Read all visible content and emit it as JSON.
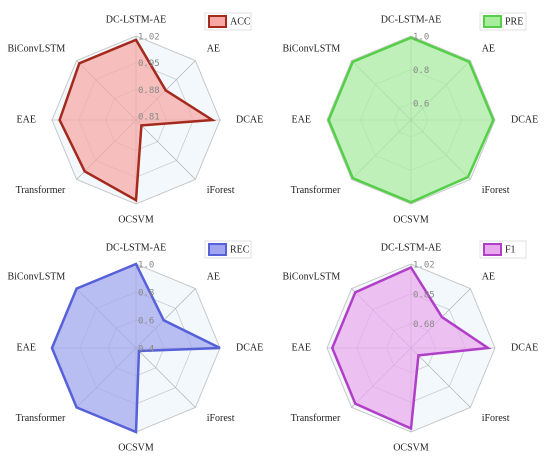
{
  "chart_data": [
    {
      "type": "radar",
      "categories": [
        "DC-LSTM-AE",
        "AE",
        "DCAE",
        "iForest",
        "OCSVM",
        "Transformer",
        "EAE",
        "BiConvLSTM"
      ],
      "series": [
        {
          "name": "ACC",
          "color": "#a52a1e",
          "fill": "#f7a7a4",
          "values": [
            1.01,
            0.91,
            1.0,
            0.82,
            1.01,
            0.99,
            1.0,
            1.01
          ]
        }
      ],
      "rlim": [
        0.8,
        1.02
      ],
      "rticks": [
        0.81,
        0.88,
        0.95,
        1.02
      ]
    },
    {
      "type": "radar",
      "categories": [
        "DC-LSTM-AE",
        "AE",
        "DCAE",
        "iForest",
        "OCSVM",
        "Transformer",
        "EAE",
        "BiConvLSTM"
      ],
      "series": [
        {
          "name": "PRE",
          "color": "#55cf48",
          "fill": "#a8ec9e",
          "values": [
            0.99,
            0.99,
            0.99,
            0.98,
            0.99,
            0.99,
            0.99,
            0.99
          ]
        }
      ],
      "rlim": [
        0.5,
        1.0
      ],
      "rticks": [
        0.6,
        0.8,
        {
          "value": 1.0,
          "label": "1.0"
        }
      ]
    },
    {
      "type": "radar",
      "categories": [
        "DC-LSTM-AE",
        "AE",
        "DCAE",
        "iForest",
        "OCSVM",
        "Transformer",
        "EAE",
        "BiConvLSTM"
      ],
      "series": [
        {
          "name": "REC",
          "color": "#5660d8",
          "fill": "#9fa5ee",
          "values": [
            1.0,
            0.68,
            1.0,
            0.43,
            1.0,
            1.0,
            1.0,
            1.0
          ]
        }
      ],
      "rlim": [
        0.4,
        1.0
      ],
      "rticks": [
        0.4,
        0.6,
        0.8,
        {
          "value": 1.0,
          "label": "1.0"
        }
      ]
    },
    {
      "type": "radar",
      "categories": [
        "DC-LSTM-AE",
        "AE",
        "DCAE",
        "iForest",
        "OCSVM",
        "Transformer",
        "EAE",
        "BiConvLSTM"
      ],
      "series": [
        {
          "name": "F1",
          "color": "#b03fc8",
          "fill": "#e9a8ee",
          "values": [
            1.0,
            0.79,
            0.98,
            0.6,
            1.0,
            0.99,
            0.99,
            0.99
          ]
        }
      ],
      "rlim": [
        0.54,
        1.02
      ],
      "rticks": [
        0.68,
        0.85,
        1.02
      ]
    }
  ]
}
